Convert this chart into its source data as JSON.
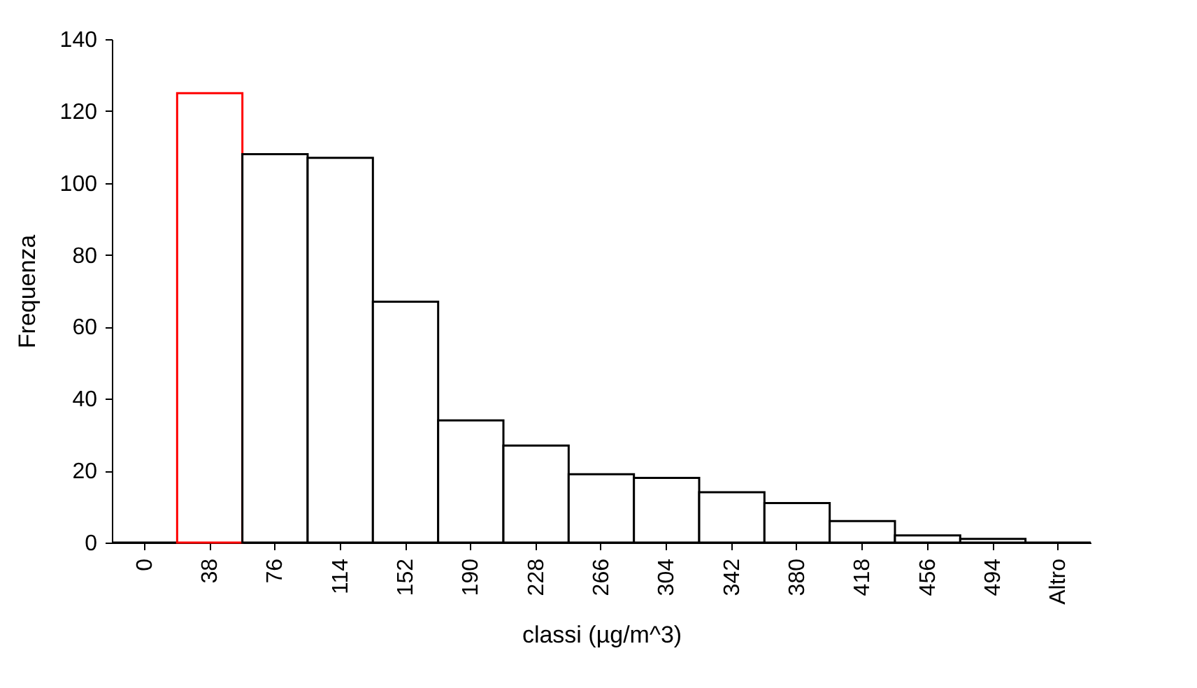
{
  "chart_data": {
    "type": "bar",
    "xlabel": "classi (µg/m^3)",
    "ylabel": "Frequenza",
    "categories": [
      "0",
      "38",
      "76",
      "114",
      "152",
      "190",
      "228",
      "266",
      "304",
      "342",
      "380",
      "418",
      "456",
      "494",
      "Altro"
    ],
    "values": [
      0,
      125,
      108,
      107,
      67,
      34,
      27,
      19,
      18,
      14,
      11,
      6,
      2,
      1,
      0
    ],
    "colors": [
      "#000000",
      "#ff0000",
      "#000000",
      "#000000",
      "#000000",
      "#000000",
      "#000000",
      "#000000",
      "#000000",
      "#000000",
      "#000000",
      "#000000",
      "#000000",
      "#000000",
      "#000000"
    ],
    "ylim": [
      0,
      140
    ],
    "yticks": [
      0,
      20,
      40,
      60,
      80,
      100,
      120,
      140
    ],
    "grid": false
  }
}
